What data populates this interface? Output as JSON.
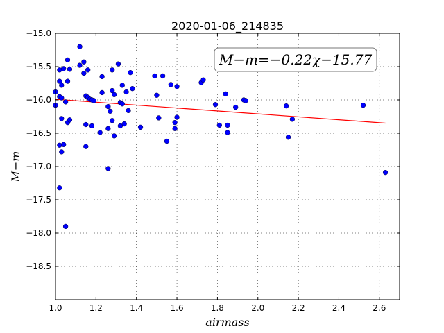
{
  "chart_data": {
    "type": "scatter",
    "title": "2020-01-06_214835",
    "xlabel": "airmass",
    "ylabel": "M−m",
    "xlim": [
      1.0,
      2.7
    ],
    "ylim": [
      -15.0,
      -19.0
    ],
    "y_inverted": true,
    "x_ticks": [
      "1.0",
      "1.2",
      "1.4",
      "1.6",
      "1.8",
      "2.0",
      "2.2",
      "2.4",
      "2.6"
    ],
    "y_ticks": [
      "−15.0",
      "−15.5",
      "−16.0",
      "−16.5",
      "−17.0",
      "−17.5",
      "−18.0",
      "−18.5"
    ],
    "grid": true,
    "annotation": "M−m=−0.22χ−15.77",
    "point_color": "#0000ff",
    "fit_color": "#ff0000",
    "fit_line": {
      "slope": -0.22,
      "intercept": -15.77,
      "x_range": [
        1.0,
        2.63
      ]
    },
    "series": [
      {
        "points": [
          [
            1.0,
            -15.88
          ],
          [
            1.0,
            -16.08
          ],
          [
            1.02,
            -15.55
          ],
          [
            1.02,
            -15.72
          ],
          [
            1.02,
            -15.95
          ],
          [
            1.02,
            -16.68
          ],
          [
            1.02,
            -17.32
          ],
          [
            1.03,
            -15.78
          ],
          [
            1.03,
            -15.97
          ],
          [
            1.03,
            -16.28
          ],
          [
            1.03,
            -16.78
          ],
          [
            1.04,
            -15.53
          ],
          [
            1.04,
            -16.67
          ],
          [
            1.05,
            -17.9
          ],
          [
            1.05,
            -16.03
          ],
          [
            1.06,
            -15.4
          ],
          [
            1.06,
            -15.72
          ],
          [
            1.06,
            -16.34
          ],
          [
            1.07,
            -15.54
          ],
          [
            1.07,
            -16.3
          ],
          [
            1.12,
            -15.2
          ],
          [
            1.12,
            -15.48
          ],
          [
            1.14,
            -15.6
          ],
          [
            1.14,
            -15.43
          ],
          [
            1.15,
            -15.94
          ],
          [
            1.15,
            -16.37
          ],
          [
            1.15,
            -16.7
          ],
          [
            1.16,
            -15.55
          ],
          [
            1.16,
            -15.96
          ],
          [
            1.17,
            -15.99
          ],
          [
            1.18,
            -16.0
          ],
          [
            1.18,
            -16.39
          ],
          [
            1.19,
            -16.01
          ],
          [
            1.22,
            -16.49
          ],
          [
            1.23,
            -15.89
          ],
          [
            1.23,
            -15.65
          ],
          [
            1.26,
            -16.1
          ],
          [
            1.26,
            -16.43
          ],
          [
            1.26,
            -17.03
          ],
          [
            1.27,
            -16.17
          ],
          [
            1.28,
            -15.55
          ],
          [
            1.28,
            -15.86
          ],
          [
            1.28,
            -16.31
          ],
          [
            1.29,
            -15.92
          ],
          [
            1.29,
            -16.54
          ],
          [
            1.31,
            -15.46
          ],
          [
            1.32,
            -16.04
          ],
          [
            1.32,
            -16.39
          ],
          [
            1.33,
            -15.78
          ],
          [
            1.33,
            -16.06
          ],
          [
            1.34,
            -16.36
          ],
          [
            1.35,
            -15.88
          ],
          [
            1.36,
            -16.16
          ],
          [
            1.37,
            -15.59
          ],
          [
            1.38,
            -15.83
          ],
          [
            1.42,
            -16.41
          ],
          [
            1.49,
            -15.64
          ],
          [
            1.5,
            -15.93
          ],
          [
            1.51,
            -16.27
          ],
          [
            1.53,
            -15.64
          ],
          [
            1.55,
            -16.62
          ],
          [
            1.57,
            -15.77
          ],
          [
            1.59,
            -16.34
          ],
          [
            1.59,
            -16.43
          ],
          [
            1.6,
            -15.8
          ],
          [
            1.6,
            -16.26
          ],
          [
            1.72,
            -15.74
          ],
          [
            1.73,
            -15.7
          ],
          [
            1.79,
            -16.07
          ],
          [
            1.81,
            -16.38
          ],
          [
            1.84,
            -15.91
          ],
          [
            1.85,
            -16.49
          ],
          [
            1.85,
            -16.38
          ],
          [
            1.89,
            -16.11
          ],
          [
            1.93,
            -16.0
          ],
          [
            1.94,
            -16.01
          ],
          [
            2.14,
            -16.09
          ],
          [
            2.15,
            -16.56
          ],
          [
            2.17,
            -16.29
          ],
          [
            2.52,
            -16.08
          ],
          [
            2.63,
            -17.09
          ]
        ]
      }
    ]
  }
}
